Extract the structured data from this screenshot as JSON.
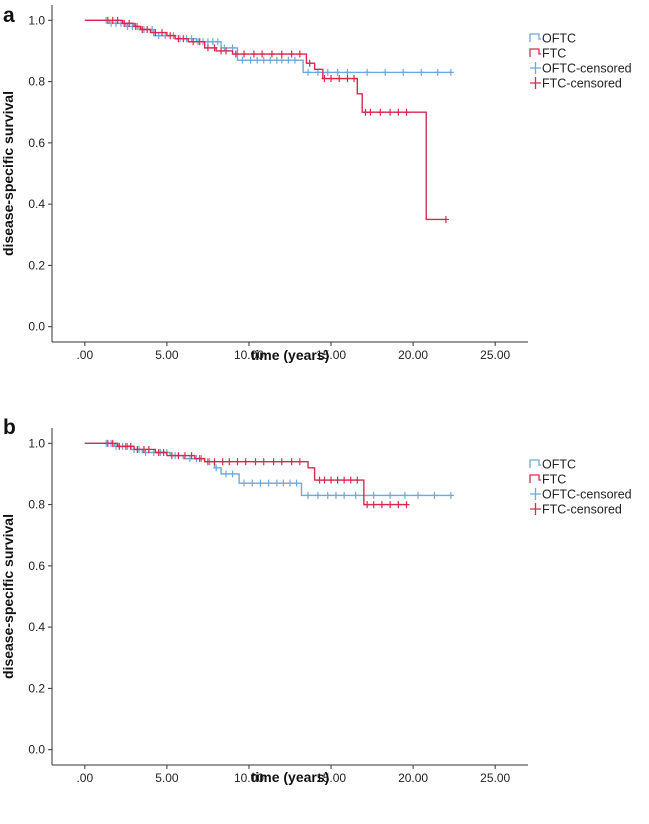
{
  "chart_data": [
    {
      "type": "line",
      "panel_label": "a",
      "xlabel": "time (years)",
      "ylabel": "disease-specific survival",
      "xlim": [
        -2,
        27
      ],
      "ylim": [
        -0.05,
        1.05
      ],
      "x_ticks": [
        ".00",
        "5.00",
        "10.00",
        "15.00",
        "20.00",
        "25.00"
      ],
      "x_tick_values": [
        0,
        5,
        10,
        15,
        20,
        25
      ],
      "y_ticks": [
        "0.0",
        "0.2",
        "0.4",
        "0.6",
        "0.8",
        "1.0"
      ],
      "y_tick_values": [
        0,
        0.2,
        0.4,
        0.6,
        0.8,
        1.0
      ],
      "legend": [
        "OFTC",
        "FTC",
        "OFTC-censored",
        "FTC-censored"
      ],
      "series": [
        {
          "name": "OFTC",
          "color": "#6fa8dc",
          "steps": [
            [
              0,
              1.0
            ],
            [
              1.5,
              0.99
            ],
            [
              2.5,
              0.98
            ],
            [
              3.3,
              0.97
            ],
            [
              4.2,
              0.95
            ],
            [
              5.5,
              0.94
            ],
            [
              6.8,
              0.93
            ],
            [
              8.3,
              0.91
            ],
            [
              9.3,
              0.87
            ],
            [
              13.3,
              0.83
            ],
            [
              22.3,
              0.83
            ]
          ],
          "censored": [
            1.3,
            1.6,
            1.9,
            2.2,
            2.6,
            2.9,
            3.2,
            3.6,
            4.1,
            4.5,
            4.9,
            5.4,
            5.8,
            6.2,
            6.5,
            6.9,
            7.2,
            7.5,
            7.8,
            8.1,
            8.5,
            9.0,
            9.6,
            10.1,
            10.5,
            10.9,
            11.3,
            11.7,
            12.0,
            12.4,
            12.8,
            13.6,
            14.2,
            14.8,
            15.4,
            16.0,
            17.2,
            18.3,
            19.4,
            20.5,
            21.5,
            22.3
          ]
        },
        {
          "name": "FTC",
          "color": "#d62b4f",
          "steps": [
            [
              0,
              1.0
            ],
            [
              2.3,
              0.99
            ],
            [
              3.0,
              0.98
            ],
            [
              3.4,
              0.97
            ],
            [
              4.0,
              0.96
            ],
            [
              5.0,
              0.95
            ],
            [
              5.5,
              0.94
            ],
            [
              6.3,
              0.93
            ],
            [
              7.3,
              0.91
            ],
            [
              8.0,
              0.9
            ],
            [
              9.0,
              0.89
            ],
            [
              13.5,
              0.86
            ],
            [
              14.0,
              0.84
            ],
            [
              14.5,
              0.81
            ],
            [
              16.6,
              0.76
            ],
            [
              16.9,
              0.7
            ],
            [
              20.8,
              0.35
            ],
            [
              22.0,
              0.35
            ]
          ],
          "censored": [
            1.4,
            1.7,
            2.0,
            2.4,
            2.7,
            3.1,
            3.5,
            3.8,
            4.3,
            4.7,
            5.2,
            5.7,
            6.0,
            6.6,
            7.0,
            7.5,
            7.9,
            8.3,
            8.6,
            9.2,
            9.7,
            10.3,
            10.8,
            11.4,
            12.0,
            12.6,
            13.1,
            13.7,
            14.6,
            15.0,
            15.5,
            16.0,
            16.4,
            17.1,
            17.4,
            18.0,
            18.6,
            19.1,
            19.6,
            22.0
          ]
        }
      ]
    },
    {
      "type": "line",
      "panel_label": "b",
      "xlabel": "time (years)",
      "ylabel": "disease-specific survival",
      "xlim": [
        -2,
        27
      ],
      "ylim": [
        -0.05,
        1.05
      ],
      "x_ticks": [
        ".00",
        "5.00",
        "10.00",
        "15.00",
        "20.00",
        "25.00"
      ],
      "x_tick_values": [
        0,
        5,
        10,
        15,
        20,
        25
      ],
      "y_ticks": [
        "0.0",
        "0.2",
        "0.4",
        "0.6",
        "0.8",
        "1.0"
      ],
      "y_tick_values": [
        0,
        0.2,
        0.4,
        0.6,
        0.8,
        1.0
      ],
      "legend": [
        "OFTC",
        "FTC",
        "OFTC-censored",
        "FTC-censored"
      ],
      "series": [
        {
          "name": "OFTC",
          "color": "#6fa8dc",
          "steps": [
            [
              0,
              1.0
            ],
            [
              1.8,
              0.99
            ],
            [
              2.8,
              0.98
            ],
            [
              3.5,
              0.97
            ],
            [
              5.2,
              0.96
            ],
            [
              6.0,
              0.95
            ],
            [
              7.3,
              0.94
            ],
            [
              7.9,
              0.92
            ],
            [
              8.3,
              0.9
            ],
            [
              9.4,
              0.87
            ],
            [
              13.2,
              0.83
            ],
            [
              22.3,
              0.83
            ]
          ],
          "censored": [
            1.3,
            1.6,
            1.9,
            2.3,
            2.6,
            3.0,
            3.3,
            3.7,
            4.2,
            4.6,
            5.0,
            5.5,
            6.4,
            6.8,
            7.1,
            7.6,
            8.0,
            8.6,
            9.0,
            9.7,
            10.2,
            10.7,
            11.2,
            11.7,
            12.1,
            12.5,
            12.9,
            13.6,
            14.2,
            14.8,
            15.3,
            15.8,
            16.5,
            17.6,
            18.6,
            19.5,
            20.3,
            21.3,
            22.3
          ]
        },
        {
          "name": "FTC",
          "color": "#d62b4f",
          "steps": [
            [
              0,
              1.0
            ],
            [
              2.0,
              0.99
            ],
            [
              3.0,
              0.98
            ],
            [
              4.3,
              0.97
            ],
            [
              5.0,
              0.96
            ],
            [
              6.7,
              0.95
            ],
            [
              7.3,
              0.94
            ],
            [
              13.6,
              0.92
            ],
            [
              14.0,
              0.88
            ],
            [
              17.0,
              0.8
            ],
            [
              19.6,
              0.8
            ]
          ],
          "censored": [
            1.4,
            1.7,
            2.1,
            2.5,
            2.8,
            3.2,
            3.6,
            3.9,
            4.5,
            4.8,
            5.3,
            5.7,
            6.1,
            6.5,
            7.0,
            7.5,
            7.9,
            8.4,
            8.8,
            9.3,
            9.8,
            10.4,
            10.9,
            11.5,
            12.0,
            12.6,
            13.1,
            14.3,
            14.6,
            15.0,
            15.4,
            15.8,
            16.2,
            16.6,
            17.2,
            17.6,
            18.1,
            18.6,
            19.1,
            19.6
          ]
        }
      ]
    }
  ]
}
